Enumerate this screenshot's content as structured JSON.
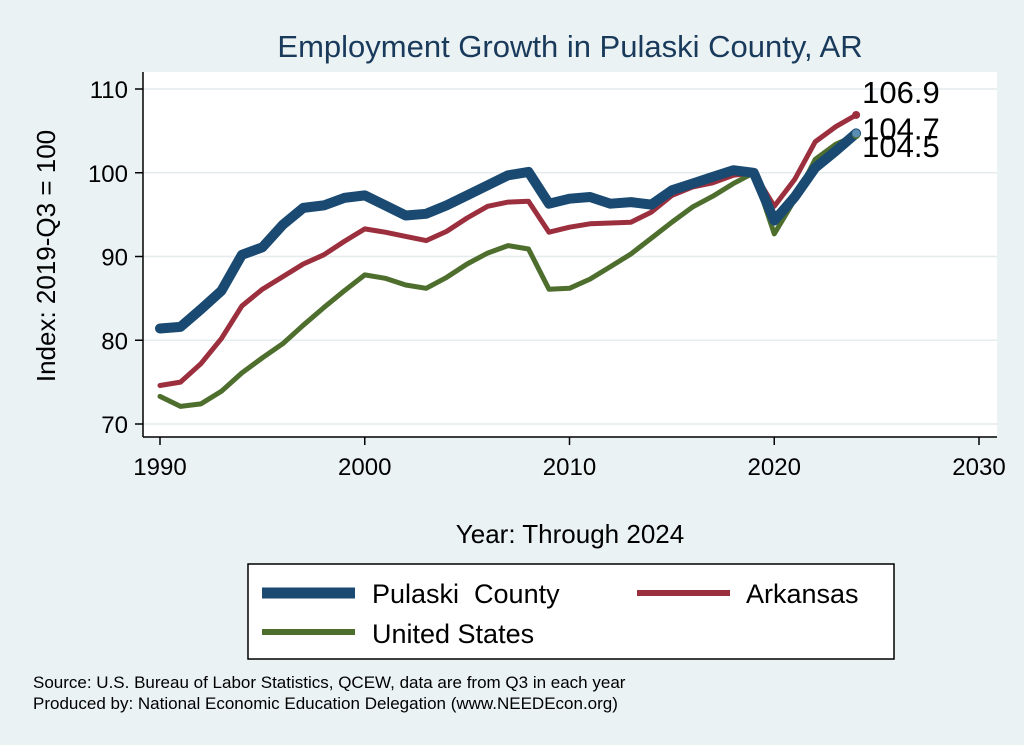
{
  "chart_data": {
    "type": "line",
    "title": "Employment Growth in Pulaski County, AR",
    "xlabel": "Year: Through 2024",
    "ylabel": "Index: 2019-Q3 = 100",
    "xlim": [
      1990,
      2030
    ],
    "ylim": [
      70,
      110
    ],
    "xticks": [
      1990,
      2000,
      2010,
      2020,
      2030
    ],
    "yticks": [
      70,
      80,
      90,
      100,
      110
    ],
    "grid": true,
    "legend_position": "bottom",
    "x": [
      1990,
      1991,
      1992,
      1993,
      1994,
      1995,
      1996,
      1997,
      1998,
      1999,
      2000,
      2001,
      2002,
      2003,
      2004,
      2005,
      2006,
      2007,
      2008,
      2009,
      2010,
      2011,
      2012,
      2013,
      2014,
      2015,
      2016,
      2017,
      2018,
      2019,
      2020,
      2021,
      2022,
      2023,
      2024
    ],
    "series": [
      {
        "name": "Pulaski  County",
        "color": "#1a4a72",
        "values": [
          81.4,
          81.6,
          83.7,
          85.9,
          90.2,
          91.1,
          93.8,
          95.8,
          96.1,
          97.0,
          97.3,
          96.1,
          94.9,
          95.1,
          96.1,
          97.3,
          98.5,
          99.7,
          100.1,
          96.3,
          96.9,
          97.1,
          96.3,
          96.5,
          96.2,
          97.9,
          98.7,
          99.5,
          100.3,
          100.0,
          94.3,
          97.1,
          100.6,
          102.6,
          104.7
        ],
        "end_label": "104.7"
      },
      {
        "name": "Arkansas",
        "color": "#9c2f3d",
        "values": [
          74.6,
          75.0,
          77.2,
          80.2,
          84.1,
          86.1,
          87.6,
          89.1,
          90.2,
          91.8,
          93.3,
          92.9,
          92.4,
          91.9,
          93.0,
          94.6,
          96.0,
          96.5,
          96.6,
          92.9,
          93.5,
          93.9,
          94.0,
          94.1,
          95.3,
          97.3,
          98.3,
          98.8,
          99.7,
          100.0,
          96.0,
          99.2,
          103.7,
          105.5,
          106.9
        ],
        "end_label": "106.9"
      },
      {
        "name": "United States",
        "color": "#4e6e2e",
        "values": [
          73.3,
          72.1,
          72.4,
          73.9,
          76.1,
          77.9,
          79.6,
          81.8,
          83.9,
          85.9,
          87.8,
          87.4,
          86.6,
          86.2,
          87.5,
          89.1,
          90.4,
          91.3,
          90.9,
          86.1,
          86.2,
          87.3,
          88.8,
          90.3,
          92.2,
          94.1,
          95.9,
          97.2,
          98.7,
          100.0,
          92.7,
          96.8,
          101.6,
          103.4,
          104.5
        ],
        "end_label": "104.5"
      }
    ],
    "notes": [
      "Source: U.S. Bureau of Labor Statistics, QCEW, data are from Q3 in each year",
      "Produced by: National Economic Education Delegation (www.NEEDEcon.org)"
    ]
  }
}
